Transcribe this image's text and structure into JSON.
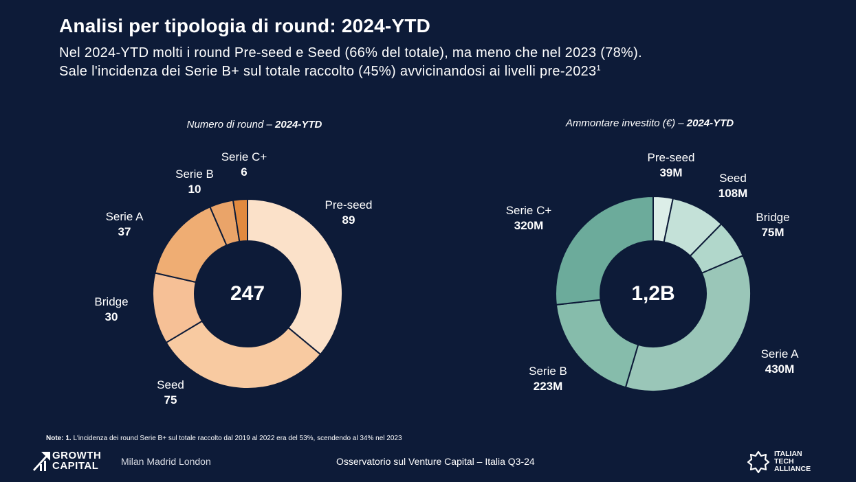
{
  "header": {
    "title": "Analisi per tipologia di round: 2024-YTD",
    "subtitle_line1": "Nel 2024-YTD molti i round Pre-seed e Seed (66% del totale), ma meno che nel 2023 (78%).",
    "subtitle_line2": "Sale l'incidenza dei Serie B+ sul totale raccolto (45%) avvicinandosi ai livelli pre-2023",
    "subtitle_footnote_mark": "1"
  },
  "chart_data": [
    {
      "type": "pie",
      "donut": true,
      "title_prefix": "Numero di round – ",
      "title_bold": "2024-YTD",
      "center_label": "247",
      "categories": [
        "Pre-seed",
        "Seed",
        "Bridge",
        "Serie A",
        "Serie B",
        "Serie C+"
      ],
      "values": [
        89,
        75,
        30,
        37,
        10,
        6
      ],
      "value_labels": [
        "89",
        "75",
        "30",
        "37",
        "10",
        "6"
      ],
      "colors": [
        "#fbe1c9",
        "#f8caa1",
        "#f6c096",
        "#efad73",
        "#eaa469",
        "#e28a3f"
      ]
    },
    {
      "type": "pie",
      "donut": true,
      "title_prefix": "Ammontare investito (€) – ",
      "title_bold": "2024-YTD",
      "center_label": "1,2B",
      "categories": [
        "Pre-seed",
        "Seed",
        "Bridge",
        "Serie A",
        "Serie B",
        "Serie C+"
      ],
      "values": [
        39,
        108,
        75,
        430,
        223,
        320
      ],
      "value_labels": [
        "39M",
        "108M",
        "75M",
        "430M",
        "223M",
        "320M"
      ],
      "colors": [
        "#dceee8",
        "#c4e1d8",
        "#b1d7cb",
        "#9ac6b8",
        "#86bcab",
        "#6cab9b"
      ]
    }
  ],
  "note": {
    "prefix": "Note: 1.",
    "text": " L'incidenza dei round Serie B+ sul totale raccolto dal 2019 al 2022 era del 53%, scendendo al 34% nel 2023"
  },
  "footer": {
    "brand_line1": "GROWTH",
    "brand_line2": "CAPITAL",
    "cities": "Milan Madrid London",
    "center_text": "Osservatorio sul Venture Capital – Italia Q3-24",
    "partner_line1": "ITALIAN",
    "partner_line2": "TECH",
    "partner_line3": "ALLIANCE"
  }
}
